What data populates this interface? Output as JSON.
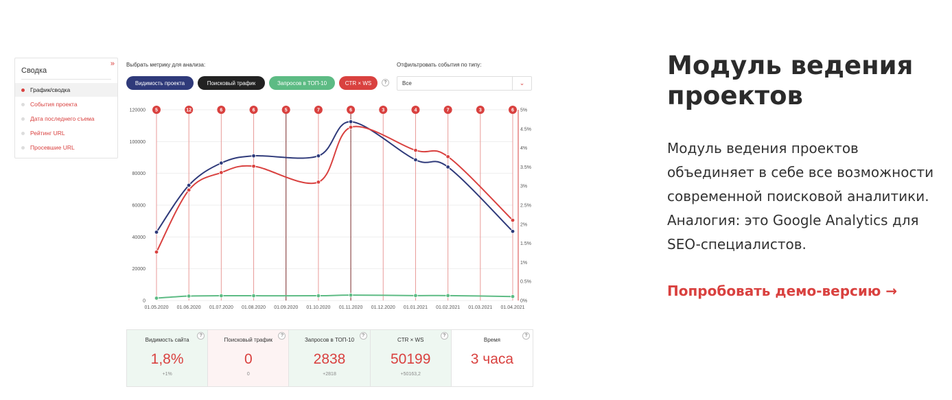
{
  "sidebar": {
    "title": "Сводка",
    "collapse_icon": "»",
    "items": [
      {
        "label": "График/сводка",
        "active": true
      },
      {
        "label": "События проекта",
        "active": false
      },
      {
        "label": "Дата последнего съема",
        "active": false
      },
      {
        "label": "Рейтинг URL",
        "active": false
      },
      {
        "label": "Просевшие URL",
        "active": false
      }
    ]
  },
  "metric_selector": {
    "label": "Выбрать метрику для анализа:",
    "pills": [
      {
        "label": "Видимость проекта",
        "color": "#2f3a7a"
      },
      {
        "label": "Поисковый трафик",
        "color": "#222222"
      },
      {
        "label": "Запросов в ТОП-10",
        "color": "#5dbb84"
      },
      {
        "label": "CTR × WS",
        "color": "#d9413f"
      }
    ],
    "help": "?"
  },
  "event_filter": {
    "label": "Отфильтровать события по типу:",
    "value": "Все",
    "chevron_icon": "⌄"
  },
  "chart_data": {
    "type": "line",
    "x": [
      "01.05.2020",
      "01.06.2020",
      "01.07.2020",
      "01.08.2020",
      "01.09.2020",
      "01.10.2020",
      "01.11.2020",
      "01.12.2020",
      "01.01.2021",
      "01.02.2021",
      "01.03.2021",
      "01.04.2021"
    ],
    "ylim": [
      0,
      120000
    ],
    "yticks": [
      "120000",
      "100000",
      "80000",
      "60000",
      "40000",
      "20000",
      "0"
    ],
    "y2lim": [
      0,
      5
    ],
    "y2ticks": [
      "5%",
      "4.5%",
      "4%",
      "3.5%",
      "3%",
      "2.5%",
      "2%",
      "1.5%",
      "1%",
      "0.5%",
      "0%"
    ],
    "events": [
      "5",
      "12",
      "6",
      "6",
      "5",
      "7",
      "6",
      "3",
      "4",
      "7",
      "3",
      "6"
    ],
    "series": [
      {
        "color": "#2f3a7a",
        "axis": "left",
        "points": [
          [
            0,
            43000
          ],
          [
            1,
            72500
          ],
          [
            2,
            86500
          ],
          [
            3,
            91000
          ],
          [
            5,
            91000
          ],
          [
            6,
            112500
          ],
          [
            8,
            88500
          ],
          [
            9,
            84000
          ],
          [
            11,
            43500
          ]
        ]
      },
      {
        "color": "#d9413f",
        "axis": "left",
        "points": [
          [
            0,
            30500
          ],
          [
            1,
            69500
          ],
          [
            2,
            80500
          ],
          [
            3,
            84500
          ],
          [
            5,
            74500
          ],
          [
            6,
            109000
          ],
          [
            8,
            94500
          ],
          [
            9,
            90500
          ],
          [
            11,
            50500
          ]
        ]
      },
      {
        "color": "#5dbb84",
        "axis": "left",
        "points": [
          [
            0,
            1500
          ],
          [
            1,
            2800
          ],
          [
            2,
            3000
          ],
          [
            3,
            3000
          ],
          [
            5,
            3000
          ],
          [
            6,
            3400
          ],
          [
            8,
            3100
          ],
          [
            9,
            3100
          ],
          [
            11,
            2500
          ]
        ]
      }
    ],
    "grid": true
  },
  "stats": [
    {
      "label": "Видимость сайта",
      "value": "1,8%",
      "delta": "+1%",
      "bg": "#eef7f1",
      "help": "?"
    },
    {
      "label": "Поисковый трафик",
      "value": "0",
      "delta": "0",
      "bg": "#fdf3f3",
      "help": "?"
    },
    {
      "label": "Запросов в ТОП-10",
      "value": "2838",
      "delta": "+2818",
      "bg": "#eef7f1",
      "help": "?"
    },
    {
      "label": "CTR × WS",
      "value": "50199",
      "delta": "+50163,2",
      "bg": "#eef7f1",
      "help": "?"
    },
    {
      "label": "Время",
      "value": "3 часа",
      "delta": "",
      "bg": "#ffffff",
      "help": "?"
    }
  ],
  "promo": {
    "title": "Модуль ведения проектов",
    "text": "Модуль ведения проектов объединяет в себе все возможности современной поисковой аналитики. Аналогия: это Google Analytics для SEO-специалистов.",
    "link": "Попробовать демо-версию →"
  }
}
